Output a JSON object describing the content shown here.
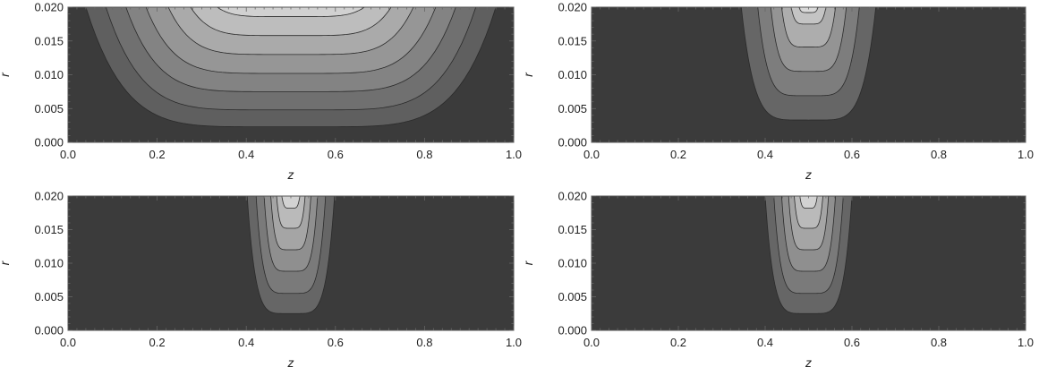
{
  "chart_data": [
    {
      "type": "contour",
      "xlabel": "z",
      "ylabel": "r",
      "xlim": [
        0.0,
        1.0
      ],
      "ylim": [
        0.0,
        0.02
      ],
      "xticks": [
        "0.0",
        "0.2",
        "0.4",
        "0.6",
        "0.8",
        "1.0"
      ],
      "yticks": [
        "0.000",
        "0.005",
        "0.010",
        "0.015",
        "0.020"
      ],
      "contour_levels": [
        {
          "zl": 0.04,
          "zr": 0.96,
          "r_min": 0.0023,
          "fill": "#5f5f5f"
        },
        {
          "zl": 0.085,
          "zr": 0.915,
          "r_min": 0.0048,
          "fill": "#707070"
        },
        {
          "zl": 0.13,
          "zr": 0.87,
          "r_min": 0.0075,
          "fill": "#838383"
        },
        {
          "zl": 0.175,
          "zr": 0.825,
          "r_min": 0.0102,
          "fill": "#969696"
        },
        {
          "zl": 0.225,
          "zr": 0.775,
          "r_min": 0.013,
          "fill": "#aaaaaa"
        },
        {
          "zl": 0.275,
          "zr": 0.725,
          "r_min": 0.0158,
          "fill": "#bdbdbd"
        },
        {
          "zl": 0.335,
          "zr": 0.665,
          "r_min": 0.0186,
          "fill": "#d1d1d1"
        }
      ],
      "background_fill": "#3b3b3b"
    },
    {
      "type": "contour",
      "xlabel": "z",
      "ylabel": "r",
      "xlim": [
        0.0,
        1.0
      ],
      "ylim": [
        0.0,
        0.02
      ],
      "xticks": [
        "0.0",
        "0.2",
        "0.4",
        "0.6",
        "0.8",
        "1.0"
      ],
      "yticks": [
        "0.000",
        "0.005",
        "0.010",
        "0.015",
        "0.020"
      ],
      "contour_levels": [
        {
          "zl": 0.345,
          "zr": 0.655,
          "r_min": 0.0033,
          "fill": "#666666"
        },
        {
          "zl": 0.383,
          "zr": 0.617,
          "r_min": 0.0069,
          "fill": "#7d7d7d"
        },
        {
          "zl": 0.413,
          "zr": 0.587,
          "r_min": 0.0105,
          "fill": "#949494"
        },
        {
          "zl": 0.438,
          "zr": 0.562,
          "r_min": 0.0141,
          "fill": "#adadad"
        },
        {
          "zl": 0.46,
          "zr": 0.54,
          "r_min": 0.0175,
          "fill": "#c4c4c4"
        },
        {
          "zl": 0.478,
          "zr": 0.522,
          "r_min": 0.0192,
          "fill": "#d9d9d9"
        }
      ],
      "background_fill": "#3b3b3b"
    },
    {
      "type": "contour",
      "xlabel": "z",
      "ylabel": "r",
      "xlim": [
        0.0,
        1.0
      ],
      "ylim": [
        0.0,
        0.02
      ],
      "xticks": [
        "0.0",
        "0.2",
        "0.4",
        "0.6",
        "0.8",
        "1.0"
      ],
      "yticks": [
        "0.000",
        "0.005",
        "0.010",
        "0.015",
        "0.020"
      ],
      "contour_levels": [
        {
          "zl": 0.402,
          "zr": 0.598,
          "r_min": 0.0025,
          "fill": "#666666"
        },
        {
          "zl": 0.422,
          "zr": 0.578,
          "r_min": 0.0055,
          "fill": "#7a7a7a"
        },
        {
          "zl": 0.44,
          "zr": 0.56,
          "r_min": 0.0088,
          "fill": "#8f8f8f"
        },
        {
          "zl": 0.455,
          "zr": 0.545,
          "r_min": 0.012,
          "fill": "#a5a5a5"
        },
        {
          "zl": 0.468,
          "zr": 0.532,
          "r_min": 0.0152,
          "fill": "#bababa"
        },
        {
          "zl": 0.48,
          "zr": 0.52,
          "r_min": 0.0182,
          "fill": "#d2d2d2"
        }
      ],
      "background_fill": "#3b3b3b"
    },
    {
      "type": "contour",
      "xlabel": "z",
      "ylabel": "r",
      "xlim": [
        0.0,
        1.0
      ],
      "ylim": [
        0.0,
        0.02
      ],
      "xticks": [
        "0.0",
        "0.2",
        "0.4",
        "0.6",
        "0.8",
        "1.0"
      ],
      "yticks": [
        "0.000",
        "0.005",
        "0.010",
        "0.015",
        "0.020"
      ],
      "contour_levels": [
        {
          "zl": 0.4,
          "zr": 0.6,
          "r_min": 0.0025,
          "fill": "#666666"
        },
        {
          "zl": 0.42,
          "zr": 0.58,
          "r_min": 0.0055,
          "fill": "#7a7a7a"
        },
        {
          "zl": 0.438,
          "zr": 0.562,
          "r_min": 0.0088,
          "fill": "#8f8f8f"
        },
        {
          "zl": 0.454,
          "zr": 0.546,
          "r_min": 0.012,
          "fill": "#a5a5a5"
        },
        {
          "zl": 0.467,
          "zr": 0.533,
          "r_min": 0.0152,
          "fill": "#bababa"
        },
        {
          "zl": 0.48,
          "zr": 0.52,
          "r_min": 0.0182,
          "fill": "#d2d2d2"
        }
      ],
      "background_fill": "#3b3b3b"
    }
  ]
}
